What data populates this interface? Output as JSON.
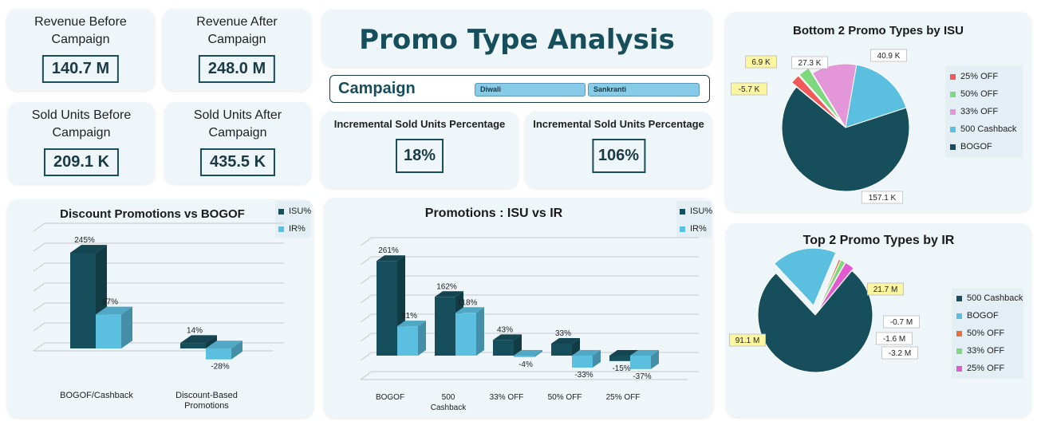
{
  "kpis": [
    {
      "title": "Revenue Before\nCampaign",
      "value": "140.7 M"
    },
    {
      "title": "Revenue After\nCampaign",
      "value": "248.0 M"
    },
    {
      "title": "Sold Units Before\nCampaign",
      "value": "209.1 K"
    },
    {
      "title": "Sold Units After\nCampaign",
      "value": "435.5 K"
    }
  ],
  "header": {
    "title": "Promo Type Analysis"
  },
  "slicer": {
    "label": "Campaign",
    "options": [
      "Diwali",
      "Sankranti"
    ]
  },
  "incremental": [
    {
      "title": "Incremental Sold Units Percentage",
      "value": "18%"
    },
    {
      "title": "Incremental Sold Units Percentage",
      "value": "106%"
    }
  ],
  "colors": {
    "isu": "#174e5c",
    "ir": "#5bbfdf",
    "pink": "#e396d8",
    "red": "#f05a5a",
    "green": "#7ed87e",
    "orange": "#e8703a"
  },
  "chart_data": [
    {
      "type": "bar",
      "title": "Discount Promotions vs BOGOF",
      "categories": [
        "BOGOF/Cashback",
        "Discount-Based\nPromotions"
      ],
      "series": [
        {
          "name": "ISU%",
          "values": [
            245,
            14
          ],
          "labels": [
            "245%",
            "14%"
          ]
        },
        {
          "name": "IR%",
          "values": [
            87,
            -28
          ],
          "labels": [
            "87%",
            "-28%"
          ]
        }
      ],
      "legend": "top-right"
    },
    {
      "type": "bar",
      "title": "Promotions : ISU  vs IR",
      "categories": [
        "BOGOF",
        "500\nCashback",
        "33% OFF",
        "50% OFF",
        "25% OFF"
      ],
      "series": [
        {
          "name": "ISU%",
          "values": [
            261,
            162,
            43,
            33,
            -15
          ],
          "labels": [
            "261%",
            "162%",
            "43%",
            "33%",
            "-15%"
          ]
        },
        {
          "name": "IR%",
          "values": [
            81,
            118,
            -4,
            -33,
            -37
          ],
          "labels": [
            "81%",
            "118%",
            "-4%",
            "-33%",
            "-37%"
          ]
        }
      ],
      "legend": "top-right"
    },
    {
      "type": "pie",
      "title": "Bottom 2 Promo Types by ISU",
      "slices": [
        {
          "name": "25% OFF",
          "value": -5.7,
          "label": "-5.7 K",
          "color": "#f05a5a"
        },
        {
          "name": "50% OFF",
          "value": 6.9,
          "label": "6.9 K",
          "color": "#7ed87e"
        },
        {
          "name": "33% OFF",
          "value": 27.3,
          "label": "27.3 K",
          "color": "#e396d8"
        },
        {
          "name": "500 Cashback",
          "value": 40.9,
          "label": "40.9 K",
          "color": "#5bbfdf"
        },
        {
          "name": "BOGOF",
          "value": 157.1,
          "label": "157.1 K",
          "color": "#174e5c"
        }
      ],
      "legend": "right"
    },
    {
      "type": "pie",
      "title": "Top 2 Promo Types by IR",
      "slices": [
        {
          "name": "500 Cashback",
          "value": 91.1,
          "label": "91.1 M",
          "color": "#174e5c"
        },
        {
          "name": "BOGOF",
          "value": 21.7,
          "label": "21.7 M",
          "color": "#5bbfdf"
        },
        {
          "name": "50% OFF",
          "value": -0.7,
          "label": "-0.7 M",
          "color": "#e8703a"
        },
        {
          "name": "33% OFF",
          "value": -1.6,
          "label": "-1.6 M",
          "color": "#7ed87e"
        },
        {
          "name": "25% OFF",
          "value": -3.2,
          "label": "-3.2 M",
          "color": "#e35ad0"
        }
      ],
      "legend": "right"
    }
  ]
}
